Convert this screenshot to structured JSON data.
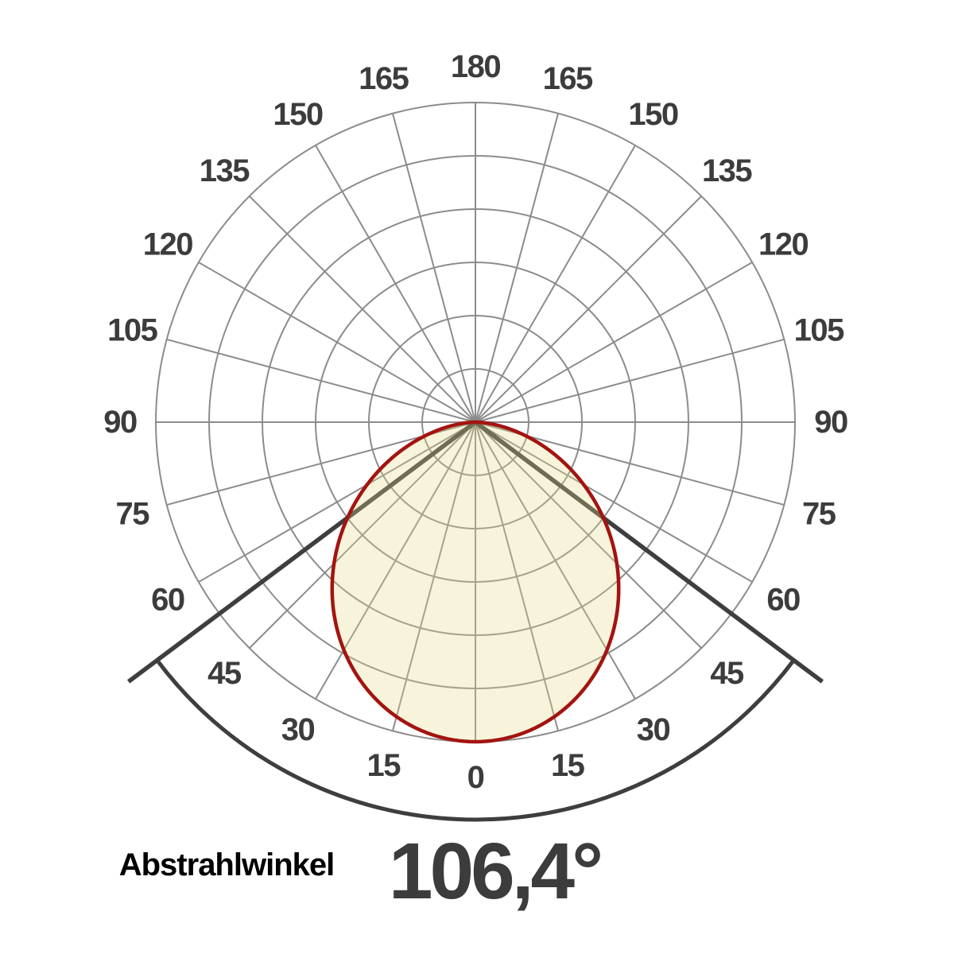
{
  "chart_data": {
    "type": "polar",
    "subtype": "luminous-intensity-distribution",
    "angle_ticks_deg": [
      0,
      15,
      30,
      45,
      60,
      75,
      90,
      105,
      120,
      135,
      150,
      165,
      180
    ],
    "mirrored_labels": true,
    "zero_direction": "down",
    "rings": 6,
    "spoke_step_deg": 15,
    "r_max_relative": 1.0,
    "beam_angle_deg": 106.4,
    "relative_intensity_at_beam_edge": 0.5,
    "intensity_model": "I(theta) = cos(theta)^n with n chosen so I(beam_angle/2) = 0.5",
    "lobe_peak_at_deg": 0,
    "legend": "none",
    "grid": true
  },
  "footer": {
    "label": "Abstrahlwinkel",
    "value": "106,4°"
  },
  "colors": {
    "background": "#ffffff",
    "grid": "#8c8c8c",
    "tick_label": "#3c3c3c",
    "lobe_fill": "rgba(229,217,136,0.30)",
    "lobe_stroke": "#a31410",
    "beam_marker": "#3e3e3e",
    "footer_label": "#000000",
    "footer_value": "#3c3c3c"
  }
}
